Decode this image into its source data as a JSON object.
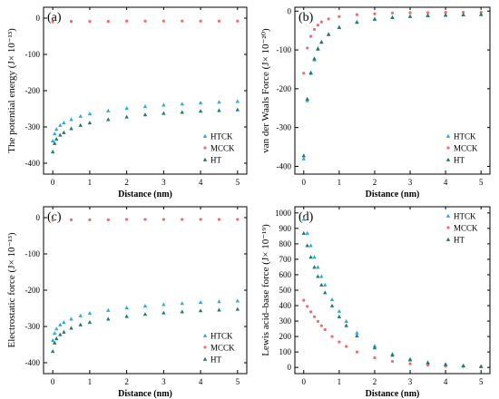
{
  "chart_data": [
    {
      "type": "scatter",
      "panel_label": "(a)",
      "ylabel": "The potential energy (J× 10⁻¹³)",
      "xlabel": "Distance (nm)",
      "xlim": [
        -0.25,
        5.25
      ],
      "ylim": [
        -430,
        30
      ],
      "xticks": [
        0,
        1,
        2,
        3,
        4,
        5
      ],
      "yticks": [
        0,
        -100,
        -200,
        -300,
        -400
      ],
      "legend_position": "bottom-right",
      "grid": false,
      "series": [
        {
          "name": "HTCK",
          "color": "#2fa8e0",
          "marker": "triangle",
          "x": [
            0.0,
            0.05,
            0.1,
            0.2,
            0.3,
            0.5,
            0.75,
            1.0,
            1.5,
            2.0,
            2.5,
            3.0,
            3.5,
            4.0,
            4.5,
            5.0
          ],
          "y": [
            -338,
            -318,
            -306,
            -295,
            -288,
            -279,
            -270,
            -263,
            -255,
            -248,
            -243,
            -239,
            -236,
            -233,
            -231,
            -229
          ]
        },
        {
          "name": "MCCK",
          "color": "#f26b6b",
          "marker": "circle",
          "x": [
            0.0,
            0.5,
            1.0,
            1.5,
            2.0,
            2.5,
            3.0,
            3.5,
            4.0,
            4.5,
            5.0
          ],
          "y": [
            -10,
            -9,
            -9,
            -9,
            -8,
            -8,
            -8,
            -8,
            -8,
            -8,
            -8
          ]
        },
        {
          "name": "HT",
          "color": "#1e7a6a",
          "marker": "triangle",
          "x": [
            0.0,
            0.05,
            0.1,
            0.2,
            0.3,
            0.5,
            0.75,
            1.0,
            1.5,
            2.0,
            2.5,
            3.0,
            3.5,
            4.0,
            4.5,
            5.0
          ],
          "y": [
            -368,
            -345,
            -333,
            -322,
            -315,
            -304,
            -295,
            -288,
            -279,
            -272,
            -266,
            -262,
            -259,
            -256,
            -254,
            -252
          ]
        }
      ]
    },
    {
      "type": "scatter",
      "panel_label": "(b)",
      "ylabel": "van der Waals Force (J× 10⁻²⁰)",
      "xlabel": "Distance (nm)",
      "xlim": [
        -0.25,
        5.25
      ],
      "ylim": [
        -420,
        10
      ],
      "xticks": [
        0,
        1,
        2,
        3,
        4,
        5
      ],
      "yticks": [
        0,
        -100,
        -200,
        -300,
        -400
      ],
      "legend_position": "bottom-right",
      "grid": false,
      "series": [
        {
          "name": "HTCK",
          "color": "#2fa8e0",
          "marker": "triangle",
          "x": [
            0.0,
            0.1,
            0.2,
            0.3,
            0.4,
            0.5,
            0.7,
            1.0,
            1.5,
            2.0,
            2.5,
            3.0,
            3.5,
            4.0,
            4.5,
            5.0
          ],
          "y": [
            -380,
            -230,
            -160,
            -125,
            -98,
            -80,
            -60,
            -42,
            -28,
            -20,
            -16,
            -13,
            -11,
            -10,
            -9,
            -8
          ]
        },
        {
          "name": "MCCK",
          "color": "#f26b6b",
          "marker": "circle",
          "x": [
            0.0,
            0.1,
            0.2,
            0.3,
            0.4,
            0.5,
            0.7,
            1.0,
            1.5,
            2.0,
            2.5,
            3.0,
            3.5,
            4.0,
            4.5,
            5.0
          ],
          "y": [
            -160,
            -95,
            -65,
            -47,
            -36,
            -28,
            -20,
            -14,
            -9,
            -7,
            -5,
            -4,
            -4,
            -3,
            -3,
            -3
          ]
        },
        {
          "name": "HT",
          "color": "#1e7a6a",
          "marker": "triangle",
          "x": [
            0.0,
            0.1,
            0.2,
            0.3,
            0.4,
            0.5,
            0.7,
            1.0,
            1.5,
            2.0,
            2.5,
            3.0,
            3.5,
            4.0,
            4.5,
            5.0
          ],
          "y": [
            -372,
            -226,
            -158,
            -122,
            -96,
            -79,
            -59,
            -41,
            -28,
            -20,
            -16,
            -13,
            -11,
            -10,
            -9,
            -8
          ]
        }
      ]
    },
    {
      "type": "scatter",
      "panel_label": "(c)",
      "ylabel": "Electrostatic force (J× 10⁻¹³)",
      "xlabel": "Distance (nm)",
      "xlim": [
        -0.25,
        5.25
      ],
      "ylim": [
        -430,
        30
      ],
      "xticks": [
        0,
        1,
        2,
        3,
        4,
        5
      ],
      "yticks": [
        0,
        -100,
        -200,
        -300,
        -400
      ],
      "legend_position": "bottom-right",
      "grid": false,
      "series": [
        {
          "name": "HTCK",
          "color": "#2fa8e0",
          "marker": "triangle",
          "x": [
            0.0,
            0.05,
            0.1,
            0.2,
            0.3,
            0.5,
            0.75,
            1.0,
            1.5,
            2.0,
            2.5,
            3.0,
            3.5,
            4.0,
            4.5,
            5.0
          ],
          "y": [
            -338,
            -318,
            -306,
            -295,
            -288,
            -279,
            -270,
            -263,
            -255,
            -248,
            -243,
            -239,
            -236,
            -233,
            -231,
            -229
          ]
        },
        {
          "name": "MCCK",
          "color": "#f26b6b",
          "marker": "circle",
          "x": [
            0.0,
            0.5,
            1.0,
            1.5,
            2.0,
            2.5,
            3.0,
            3.5,
            4.0,
            4.5,
            5.0
          ],
          "y": [
            -7,
            -6,
            -6,
            -6,
            -5,
            -5,
            -5,
            -5,
            -5,
            -5,
            -5
          ]
        },
        {
          "name": "HT",
          "color": "#1e7a6a",
          "marker": "triangle",
          "x": [
            0.0,
            0.05,
            0.1,
            0.2,
            0.3,
            0.5,
            0.75,
            1.0,
            1.5,
            2.0,
            2.5,
            3.0,
            3.5,
            4.0,
            4.5,
            5.0
          ],
          "y": [
            -368,
            -345,
            -333,
            -322,
            -315,
            -304,
            -295,
            -288,
            -279,
            -272,
            -266,
            -262,
            -259,
            -256,
            -254,
            -252
          ]
        }
      ]
    },
    {
      "type": "scatter",
      "panel_label": "(d)",
      "ylabel": "Lewis acid–base force (J× 10⁻¹⁹)",
      "xlabel": "Distance (nm)",
      "xlim": [
        -0.25,
        5.25
      ],
      "ylim": [
        -40,
        1040
      ],
      "xticks": [
        0,
        1,
        2,
        3,
        4,
        5
      ],
      "yticks": [
        0,
        100,
        200,
        300,
        400,
        500,
        600,
        700,
        800,
        900,
        1000
      ],
      "legend_position": "top-right",
      "grid": false,
      "series": [
        {
          "name": "HTCK",
          "color": "#2fa8e0",
          "marker": "triangle",
          "x": [
            0.0,
            0.1,
            0.2,
            0.3,
            0.4,
            0.5,
            0.6,
            0.8,
            1.0,
            1.2,
            1.5,
            2.0,
            2.5,
            3.0,
            3.5,
            4.0,
            4.5,
            5.0
          ],
          "y": [
            960,
            870,
            790,
            715,
            650,
            590,
            535,
            440,
            365,
            300,
            225,
            140,
            88,
            55,
            34,
            22,
            13,
            8
          ]
        },
        {
          "name": "MCCK",
          "color": "#f26b6b",
          "marker": "circle",
          "x": [
            0.0,
            0.1,
            0.2,
            0.3,
            0.4,
            0.5,
            0.6,
            0.8,
            1.0,
            1.2,
            1.5,
            2.0,
            2.5,
            3.0,
            3.5,
            4.0,
            4.5,
            5.0
          ],
          "y": [
            435,
            395,
            360,
            328,
            298,
            270,
            245,
            200,
            165,
            136,
            100,
            62,
            39,
            24,
            15,
            9,
            6,
            4
          ]
        },
        {
          "name": "HT",
          "color": "#1e7a6a",
          "marker": "triangle",
          "x": [
            0.0,
            0.1,
            0.2,
            0.3,
            0.4,
            0.5,
            0.6,
            0.8,
            1.0,
            1.2,
            1.5,
            2.0,
            2.5,
            3.0,
            3.5,
            4.0,
            4.5,
            5.0
          ],
          "y": [
            870,
            790,
            715,
            650,
            590,
            535,
            485,
            400,
            330,
            272,
            205,
            128,
            80,
            50,
            31,
            20,
            12,
            7
          ]
        }
      ]
    }
  ]
}
